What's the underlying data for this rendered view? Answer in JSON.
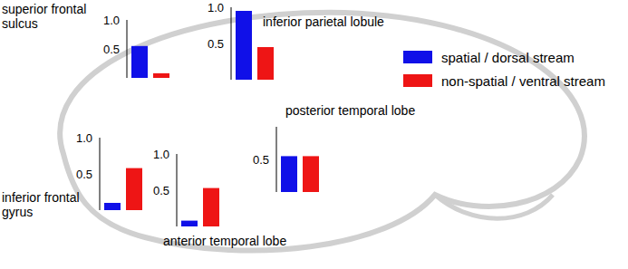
{
  "chart_data": [
    {
      "type": "bar",
      "title": "superior frontal sulcus",
      "categories": [
        null
      ],
      "series": [
        {
          "name": "spatial / dorsal stream",
          "color": "#1010e8",
          "values": [
            0.55
          ]
        },
        {
          "name": "non-spatial / ventral stream",
          "color": "#ee1515",
          "values": [
            0.08
          ]
        }
      ],
      "ylim": [
        0,
        1
      ],
      "yticks": [
        0.5,
        {
          "value": 1,
          "label": "1.0"
        }
      ],
      "tick_labels": "y",
      "legend": "right"
    },
    {
      "type": "bar",
      "title": "inferior parietal lobule",
      "categories": [
        null
      ],
      "series": [
        {
          "name": "spatial / dorsal stream",
          "color": "#1010e8",
          "values": [
            0.95
          ]
        },
        {
          "name": "non-spatial / ventral stream",
          "color": "#ee1515",
          "values": [
            0.45
          ]
        }
      ],
      "ylim": [
        0,
        1
      ],
      "yticks": [
        0.5,
        {
          "value": 1,
          "label": "1.0"
        }
      ],
      "tick_labels": "y"
    },
    {
      "type": "bar",
      "title": "inferior frontal gyrus",
      "categories": [
        null
      ],
      "series": [
        {
          "name": "spatial / dorsal stream",
          "color": "#1010e8",
          "values": [
            0.1
          ]
        },
        {
          "name": "non-spatial / ventral stream",
          "color": "#ee1515",
          "values": [
            0.58
          ]
        }
      ],
      "ylim": [
        0,
        1
      ],
      "yticks": [
        0.5,
        {
          "value": 1,
          "label": "1.0"
        }
      ],
      "tick_labels": "y"
    },
    {
      "type": "bar",
      "title": "anterior temporal lobe",
      "categories": [
        null
      ],
      "series": [
        {
          "name": "spatial / dorsal stream",
          "color": "#1010e8",
          "values": [
            0.08
          ]
        },
        {
          "name": "non-spatial / ventral stream",
          "color": "#ee1515",
          "values": [
            0.53
          ]
        }
      ],
      "ylim": [
        0,
        1
      ],
      "yticks": [
        0.5,
        {
          "value": 1,
          "label": "1.0"
        }
      ],
      "tick_labels": "y"
    },
    {
      "type": "bar",
      "title": "posterior temporal lobe",
      "categories": [
        null
      ],
      "series": [
        {
          "name": "spatial / dorsal stream",
          "color": "#1010e8",
          "values": [
            0.55
          ]
        },
        {
          "name": "non-spatial / ventral stream",
          "color": "#ee1515",
          "values": [
            0.55
          ]
        }
      ],
      "ylim": [
        0,
        1
      ],
      "yticks": [
        0.5
      ],
      "tick_labels": "y"
    }
  ]
}
